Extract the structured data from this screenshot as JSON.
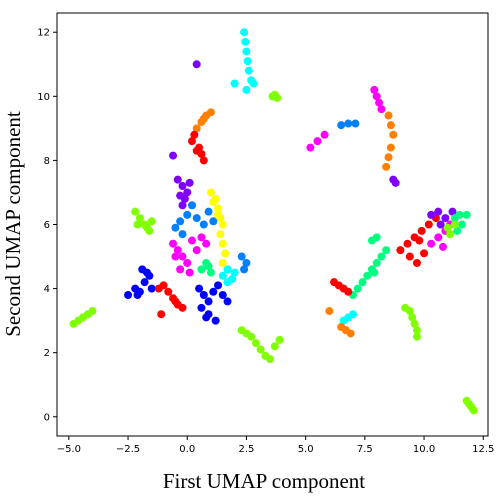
{
  "chart_data": {
    "type": "scatter",
    "title": "",
    "xlabel": "First UMAP component",
    "ylabel": "Second UMAP component",
    "xlim": [
      -5.5,
      12.7
    ],
    "ylim": [
      -0.6,
      12.6
    ],
    "xticks": [
      -5.0,
      -2.5,
      0.0,
      2.5,
      5.0,
      7.5,
      10.0,
      12.5
    ],
    "xtick_labels": [
      "−5.0",
      "−2.5",
      "0.0",
      "2.5",
      "5.0",
      "7.5",
      "10.0",
      "12.5"
    ],
    "yticks": [
      0,
      2,
      4,
      6,
      8,
      10,
      12
    ],
    "ytick_labels": [
      "0",
      "2",
      "4",
      "6",
      "8",
      "10",
      "12"
    ],
    "grid": false,
    "legend": "none",
    "clusters": [
      {
        "color": "#00ffff",
        "points": [
          [
            2.4,
            12.0
          ],
          [
            2.45,
            11.7
          ],
          [
            2.5,
            11.4
          ],
          [
            2.55,
            11.1
          ],
          [
            2.6,
            10.8
          ],
          [
            2.7,
            10.5
          ],
          [
            2.8,
            10.4
          ],
          [
            2.5,
            10.2
          ],
          [
            2.0,
            10.4
          ]
        ]
      },
      {
        "color": "#80ff00",
        "points": [
          [
            3.6,
            10.0
          ],
          [
            3.8,
            9.95
          ],
          [
            3.7,
            10.05
          ]
        ]
      },
      {
        "color": "#8000ff",
        "points": [
          [
            0.4,
            11.0
          ]
        ]
      },
      {
        "color": "#ff8000",
        "points": [
          [
            0.4,
            9.0
          ],
          [
            0.6,
            9.2
          ],
          [
            0.8,
            9.4
          ],
          [
            1.0,
            9.5
          ],
          [
            0.7,
            9.3
          ]
        ]
      },
      {
        "color": "#ff0000",
        "points": [
          [
            0.2,
            8.6
          ],
          [
            0.3,
            8.8
          ],
          [
            0.5,
            8.4
          ],
          [
            0.6,
            8.2
          ],
          [
            0.7,
            8.0
          ],
          [
            0.4,
            8.3
          ]
        ]
      },
      {
        "color": "#8000ff",
        "points": [
          [
            -0.6,
            8.15
          ],
          [
            -0.4,
            7.4
          ],
          [
            -0.2,
            7.2
          ],
          [
            0.0,
            7.0
          ],
          [
            -0.3,
            6.9
          ],
          [
            -0.1,
            6.8
          ],
          [
            0.1,
            7.3
          ],
          [
            -0.2,
            6.6
          ]
        ]
      },
      {
        "color": "#ffff00",
        "points": [
          [
            1.0,
            7.0
          ],
          [
            1.2,
            6.8
          ],
          [
            1.3,
            6.5
          ],
          [
            1.4,
            6.2
          ],
          [
            1.5,
            6.0
          ],
          [
            1.4,
            5.7
          ],
          [
            1.5,
            5.4
          ],
          [
            1.6,
            5.1
          ],
          [
            1.5,
            4.8
          ],
          [
            1.3,
            6.3
          ],
          [
            1.1,
            6.7
          ]
        ]
      },
      {
        "color": "#0080ff",
        "points": [
          [
            0.2,
            6.6
          ],
          [
            0.0,
            6.3
          ],
          [
            -0.3,
            6.1
          ],
          [
            -0.5,
            5.9
          ],
          [
            -0.2,
            5.7
          ],
          [
            0.4,
            6.2
          ],
          [
            0.7,
            6.0
          ],
          [
            0.9,
            6.4
          ],
          [
            1.1,
            6.1
          ]
        ]
      },
      {
        "color": "#80ff00",
        "points": [
          [
            -2.2,
            6.4
          ],
          [
            -2.0,
            6.2
          ],
          [
            -1.8,
            6.0
          ],
          [
            -1.6,
            5.8
          ],
          [
            -1.5,
            6.1
          ],
          [
            -1.7,
            5.9
          ],
          [
            -2.1,
            6.0
          ]
        ]
      },
      {
        "color": "#ff00ff",
        "points": [
          [
            -0.6,
            5.4
          ],
          [
            -0.4,
            5.2
          ],
          [
            -0.2,
            5.0
          ],
          [
            0.0,
            4.8
          ],
          [
            0.2,
            5.5
          ],
          [
            0.4,
            5.2
          ],
          [
            0.6,
            5.6
          ],
          [
            0.8,
            5.4
          ],
          [
            -0.3,
            4.6
          ],
          [
            0.1,
            4.5
          ],
          [
            -0.5,
            5.0
          ]
        ]
      },
      {
        "color": "#00ff80",
        "points": [
          [
            0.6,
            4.6
          ],
          [
            0.8,
            4.8
          ],
          [
            1.0,
            4.5
          ],
          [
            0.9,
            4.7
          ]
        ]
      },
      {
        "color": "#00ffff",
        "points": [
          [
            1.5,
            4.4
          ],
          [
            1.7,
            4.6
          ],
          [
            1.9,
            4.3
          ],
          [
            2.0,
            4.5
          ],
          [
            1.7,
            4.2
          ]
        ]
      },
      {
        "color": "#0080ff",
        "points": [
          [
            2.3,
            5.0
          ],
          [
            2.5,
            4.8
          ],
          [
            2.4,
            4.6
          ]
        ]
      },
      {
        "color": "#0000ff",
        "points": [
          [
            -2.5,
            3.8
          ],
          [
            -2.2,
            4.0
          ],
          [
            -2.0,
            3.9
          ],
          [
            -1.8,
            4.2
          ],
          [
            -1.6,
            4.4
          ],
          [
            -1.9,
            4.6
          ],
          [
            -1.7,
            4.5
          ],
          [
            -1.5,
            4.0
          ],
          [
            -2.1,
            3.8
          ]
        ]
      },
      {
        "color": "#ff0000",
        "points": [
          [
            -1.2,
            4.0
          ],
          [
            -1.0,
            4.1
          ],
          [
            -0.8,
            3.9
          ],
          [
            -0.6,
            3.7
          ],
          [
            -0.4,
            3.5
          ],
          [
            -0.2,
            3.4
          ],
          [
            -0.5,
            3.6
          ],
          [
            -1.1,
            3.2
          ]
        ]
      },
      {
        "color": "#0000ff",
        "points": [
          [
            0.5,
            4.0
          ],
          [
            0.7,
            3.8
          ],
          [
            0.9,
            3.6
          ],
          [
            1.1,
            3.9
          ],
          [
            1.3,
            4.1
          ],
          [
            1.5,
            3.8
          ],
          [
            1.7,
            3.6
          ],
          [
            0.6,
            3.4
          ],
          [
            0.9,
            3.2
          ],
          [
            1.2,
            3.0
          ],
          [
            0.8,
            3.1
          ]
        ]
      },
      {
        "color": "#80ff00",
        "points": [
          [
            -4.8,
            2.9
          ],
          [
            -4.6,
            3.0
          ],
          [
            -4.4,
            3.1
          ],
          [
            -4.2,
            3.2
          ],
          [
            -4.0,
            3.3
          ]
        ]
      },
      {
        "color": "#80ff00",
        "points": [
          [
            2.3,
            2.7
          ],
          [
            2.5,
            2.6
          ],
          [
            2.7,
            2.5
          ],
          [
            2.9,
            2.3
          ],
          [
            3.1,
            2.1
          ],
          [
            3.3,
            1.9
          ],
          [
            3.5,
            1.8
          ],
          [
            3.7,
            2.2
          ],
          [
            3.9,
            2.4
          ]
        ]
      },
      {
        "color": "#80ff00",
        "points": [
          [
            11.8,
            0.5
          ],
          [
            11.9,
            0.4
          ],
          [
            12.0,
            0.3
          ],
          [
            12.1,
            0.2
          ]
        ]
      },
      {
        "color": "#ff00ff",
        "points": [
          [
            5.2,
            8.4
          ],
          [
            5.5,
            8.6
          ],
          [
            5.8,
            8.8
          ]
        ]
      },
      {
        "color": "#0080ff",
        "points": [
          [
            6.5,
            9.1
          ],
          [
            6.8,
            9.15
          ],
          [
            7.1,
            9.15
          ]
        ]
      },
      {
        "color": "#ff00ff",
        "points": [
          [
            7.9,
            10.2
          ],
          [
            8.0,
            10.0
          ],
          [
            8.1,
            9.8
          ],
          [
            8.2,
            9.6
          ]
        ]
      },
      {
        "color": "#ff8000",
        "points": [
          [
            8.5,
            9.4
          ],
          [
            8.6,
            9.1
          ],
          [
            8.7,
            8.8
          ],
          [
            8.6,
            8.4
          ],
          [
            8.5,
            8.1
          ],
          [
            8.4,
            7.8
          ]
        ]
      },
      {
        "color": "#8000ff",
        "points": [
          [
            8.7,
            7.4
          ],
          [
            8.8,
            7.3
          ]
        ]
      },
      {
        "color": "#00ff80",
        "points": [
          [
            7.8,
            5.5
          ],
          [
            8.0,
            5.6
          ],
          [
            8.4,
            5.2
          ],
          [
            8.2,
            5.0
          ],
          [
            8.0,
            4.8
          ],
          [
            7.8,
            4.6
          ],
          [
            7.6,
            4.4
          ],
          [
            7.4,
            4.2
          ],
          [
            7.2,
            4.0
          ],
          [
            7.0,
            3.8
          ],
          [
            7.9,
            4.5
          ]
        ]
      },
      {
        "color": "#ff0000",
        "points": [
          [
            6.2,
            4.2
          ],
          [
            6.4,
            4.1
          ],
          [
            6.6,
            4.0
          ],
          [
            6.8,
            3.9
          ]
        ]
      },
      {
        "color": "#00ffff",
        "points": [
          [
            6.6,
            3.0
          ],
          [
            6.8,
            3.1
          ],
          [
            7.0,
            3.2
          ]
        ]
      },
      {
        "color": "#ff8000",
        "points": [
          [
            6.0,
            3.3
          ],
          [
            6.5,
            2.8
          ],
          [
            6.7,
            2.7
          ],
          [
            6.9,
            2.6
          ]
        ]
      },
      {
        "color": "#80ff00",
        "points": [
          [
            9.2,
            3.4
          ],
          [
            9.4,
            3.3
          ],
          [
            9.5,
            3.1
          ],
          [
            9.6,
            2.9
          ],
          [
            9.7,
            2.7
          ],
          [
            9.7,
            2.5
          ]
        ]
      },
      {
        "color": "#ff0000",
        "points": [
          [
            9.0,
            5.2
          ],
          [
            9.3,
            5.4
          ],
          [
            9.6,
            5.6
          ],
          [
            9.9,
            5.8
          ],
          [
            10.2,
            6.0
          ],
          [
            10.5,
            6.2
          ],
          [
            9.4,
            5.0
          ],
          [
            9.7,
            4.8
          ],
          [
            10.0,
            5.1
          ],
          [
            9.8,
            5.5
          ]
        ]
      },
      {
        "color": "#ff00ff",
        "points": [
          [
            10.3,
            5.4
          ],
          [
            10.6,
            5.6
          ],
          [
            10.9,
            5.8
          ],
          [
            11.1,
            6.0
          ],
          [
            10.8,
            5.3
          ]
        ]
      },
      {
        "color": "#8000ff",
        "points": [
          [
            10.3,
            6.3
          ],
          [
            10.6,
            6.4
          ],
          [
            10.9,
            6.2
          ],
          [
            11.2,
            6.4
          ],
          [
            10.7,
            6.0
          ]
        ]
      },
      {
        "color": "#00ff80",
        "points": [
          [
            11.3,
            6.2
          ],
          [
            11.5,
            6.3
          ],
          [
            11.8,
            6.3
          ],
          [
            11.6,
            6.0
          ],
          [
            11.4,
            5.8
          ]
        ]
      },
      {
        "color": "#80ff00",
        "points": [
          [
            11.0,
            5.9
          ],
          [
            11.3,
            6.0
          ],
          [
            11.1,
            5.7
          ]
        ]
      }
    ]
  }
}
